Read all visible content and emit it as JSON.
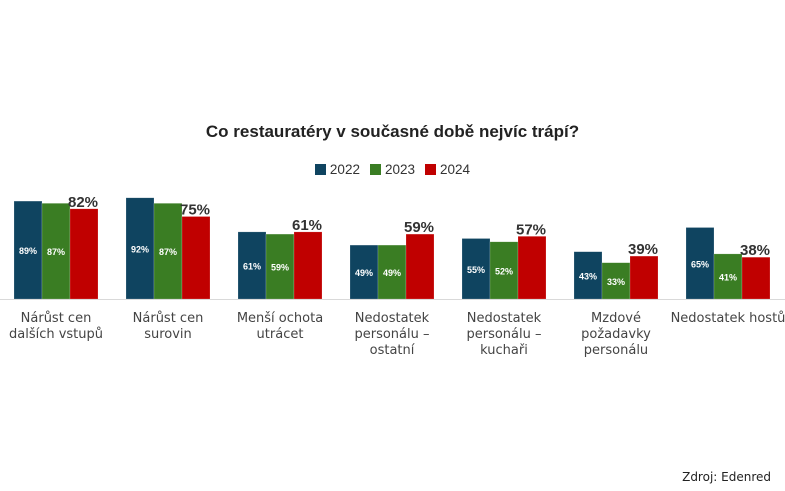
{
  "chart_data": {
    "type": "bar",
    "title": "Co restauratéry v současné době nejvíc trápí?",
    "categories": [
      [
        "Nárůst cen",
        "dalších vstupů"
      ],
      [
        "Nárůst cen",
        "surovin"
      ],
      [
        "Menší ochota",
        "utrácet"
      ],
      [
        "Nedostatek",
        "personálu –",
        "ostatní"
      ],
      [
        "Nedostatek",
        "personálu –",
        "kuchaři"
      ],
      [
        "Mzdové",
        "požadavky",
        "personálu"
      ],
      [
        "Nedostatek hostů"
      ]
    ],
    "series": [
      {
        "name": "2022",
        "color": "#0f4460",
        "values": [
          89,
          92,
          61,
          49,
          55,
          43,
          65
        ]
      },
      {
        "name": "2023",
        "color": "#3a7d23",
        "values": [
          87,
          87,
          59,
          49,
          52,
          33,
          41
        ]
      },
      {
        "name": "2024",
        "color": "#c00000",
        "values": [
          82,
          75,
          61,
          59,
          57,
          39,
          38
        ]
      }
    ],
    "value_format": "%",
    "legend_position": "top",
    "grid": false,
    "ylim": [
      0,
      100
    ]
  },
  "source": "Zdroj: Edenred"
}
